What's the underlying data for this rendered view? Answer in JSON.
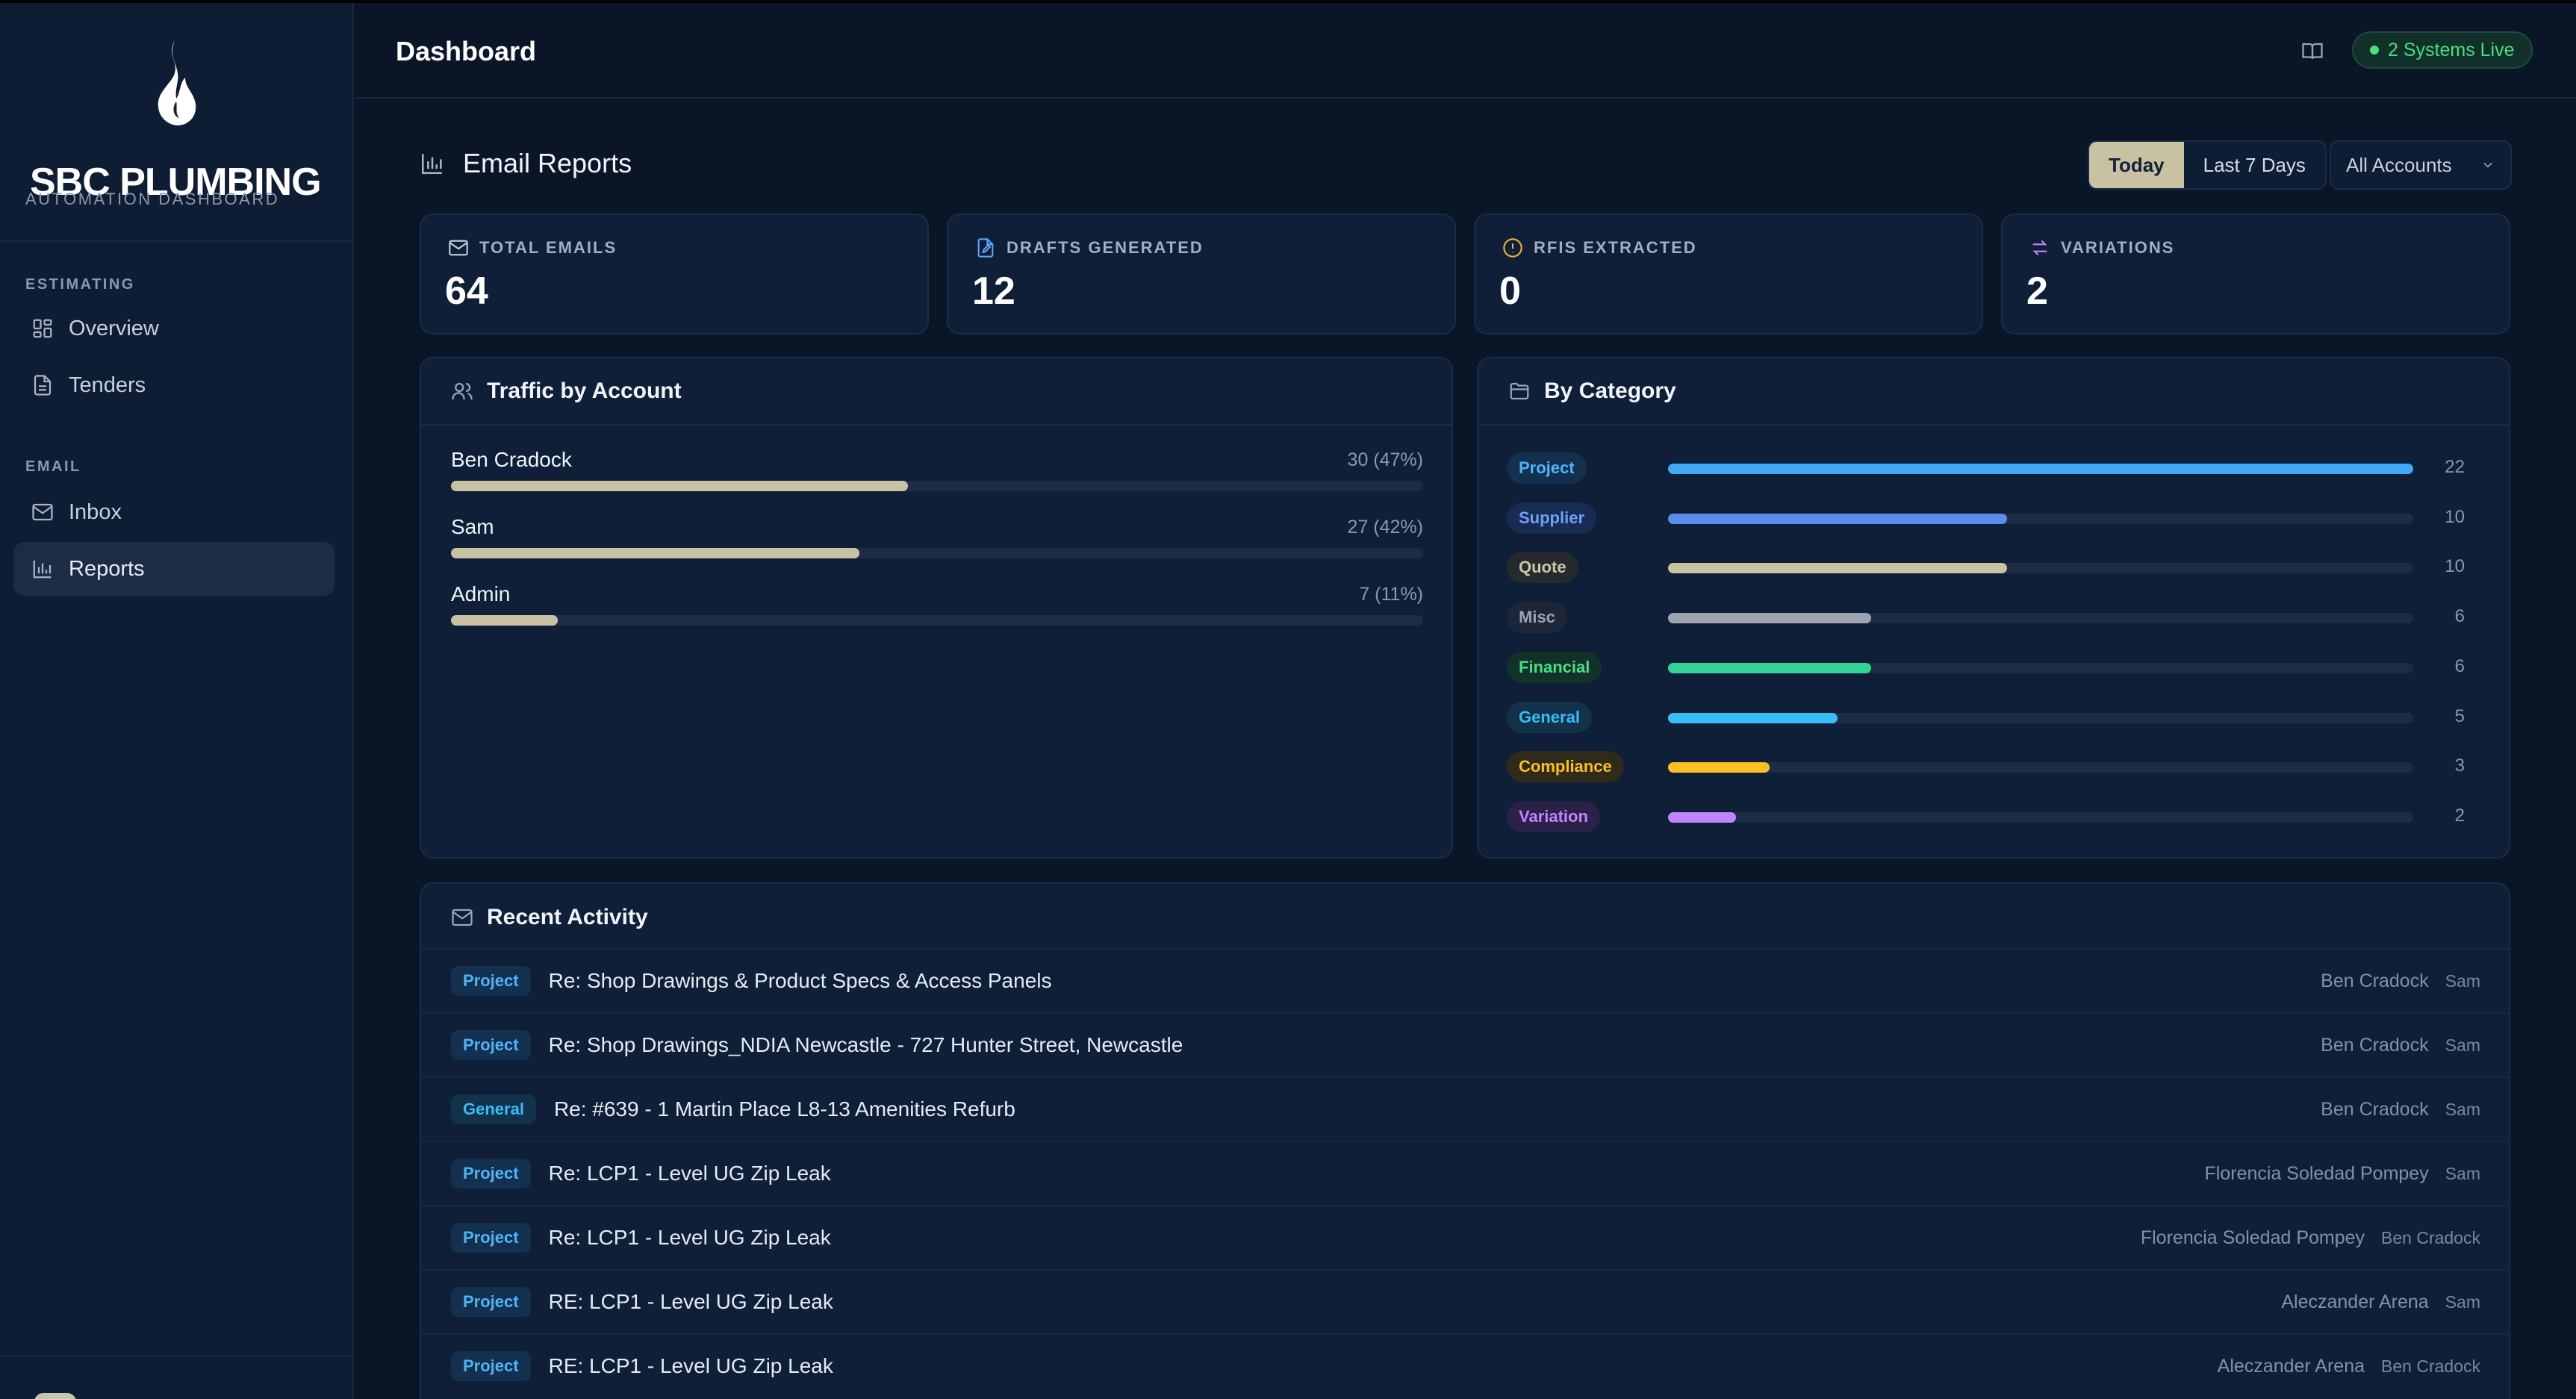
{
  "app": {
    "brand": "SBC PLUMBING",
    "brand_sub": "AUTOMATION DASHBOARD"
  },
  "sidebar": {
    "sections": [
      {
        "label": "ESTIMATING",
        "items": [
          {
            "label": "Overview",
            "icon": "grid-icon",
            "active": false
          },
          {
            "label": "Tenders",
            "icon": "document-icon",
            "active": false
          }
        ]
      },
      {
        "label": "EMAIL",
        "items": [
          {
            "label": "Inbox",
            "icon": "mail-icon",
            "active": false
          },
          {
            "label": "Reports",
            "icon": "bar-chart-icon",
            "active": true
          }
        ]
      }
    ]
  },
  "header": {
    "title": "Dashboard",
    "status_badge": "2 Systems Live"
  },
  "reports": {
    "title": "Email Reports",
    "ranges": [
      "Today",
      "Last 7 Days"
    ],
    "active_range": "Today",
    "account_filter": "All Accounts"
  },
  "stats": [
    {
      "label": "TOTAL EMAILS",
      "value": "64",
      "icon": "mail-icon",
      "color": "#c7d0dd"
    },
    {
      "label": "DRAFTS GENERATED",
      "value": "12",
      "icon": "file-edit-icon",
      "color": "#60a5fa"
    },
    {
      "label": "RFIS EXTRACTED",
      "value": "0",
      "icon": "alert-circle-icon",
      "color": "#f5b041"
    },
    {
      "label": "VARIATIONS",
      "value": "2",
      "icon": "swap-icon",
      "color": "#c084fc"
    }
  ],
  "traffic": {
    "title": "Traffic by Account",
    "accounts": [
      {
        "name": "Ben Cradock",
        "count": "30 (47%)",
        "share": 0.47
      },
      {
        "name": "Sam",
        "count": "27 (42%)",
        "share": 0.42
      },
      {
        "name": "Admin",
        "count": "7 (11%)",
        "share": 0.11
      }
    ]
  },
  "categories": {
    "title": "By Category",
    "max": 22,
    "items": [
      {
        "name": "Project",
        "value": 22,
        "text": "#4fb3f6",
        "bg": "#13314f",
        "bar": "#3fa9f5"
      },
      {
        "name": "Supplier",
        "value": 10,
        "text": "#6fa0f5",
        "bg": "#172c52",
        "bar": "#5b8def"
      },
      {
        "name": "Quote",
        "value": 10,
        "text": "#cdc6a6",
        "bg": "#262a2f",
        "bar": "#c9c2a2"
      },
      {
        "name": "Misc",
        "value": 6,
        "text": "#9aa3b2",
        "bg": "#1c2638",
        "bar": "#9ca3af"
      },
      {
        "name": "Financial",
        "value": 6,
        "text": "#4ade80",
        "bg": "#123229",
        "bar": "#34d399"
      },
      {
        "name": "General",
        "value": 5,
        "text": "#38bdf8",
        "bg": "#11324a",
        "bar": "#38bdf8"
      },
      {
        "name": "Compliance",
        "value": 3,
        "text": "#fbbf24",
        "bg": "#2f2a1a",
        "bar": "#fbbf24"
      },
      {
        "name": "Variation",
        "value": 2,
        "text": "#c084fc",
        "bg": "#2a2149",
        "bar": "#c084fc"
      }
    ]
  },
  "activity": {
    "title": "Recent Activity",
    "rows": [
      {
        "category": "Project",
        "subject": "Re: Shop Drawings & Product Specs & Access Panels",
        "from": "Ben Cradock",
        "to": "Sam"
      },
      {
        "category": "Project",
        "subject": "Re: Shop Drawings_NDIA Newcastle - 727 Hunter Street, Newcastle",
        "from": "Ben Cradock",
        "to": "Sam"
      },
      {
        "category": "General",
        "subject": "Re: #639 - 1 Martin Place L8-13 Amenities Refurb",
        "from": "Ben Cradock",
        "to": "Sam"
      },
      {
        "category": "Project",
        "subject": "Re: LCP1 - Level UG Zip Leak",
        "from": "Florencia Soledad Pompey",
        "to": "Sam"
      },
      {
        "category": "Project",
        "subject": "Re: LCP1 - Level UG Zip Leak",
        "from": "Florencia Soledad Pompey",
        "to": "Ben Cradock"
      },
      {
        "category": "Project",
        "subject": "RE: LCP1 - Level UG Zip Leak",
        "from": "Aleczander Arena",
        "to": "Sam"
      },
      {
        "category": "Project",
        "subject": "RE: LCP1 - Level UG Zip Leak",
        "from": "Aleczander Arena",
        "to": "Ben Cradock"
      }
    ]
  }
}
